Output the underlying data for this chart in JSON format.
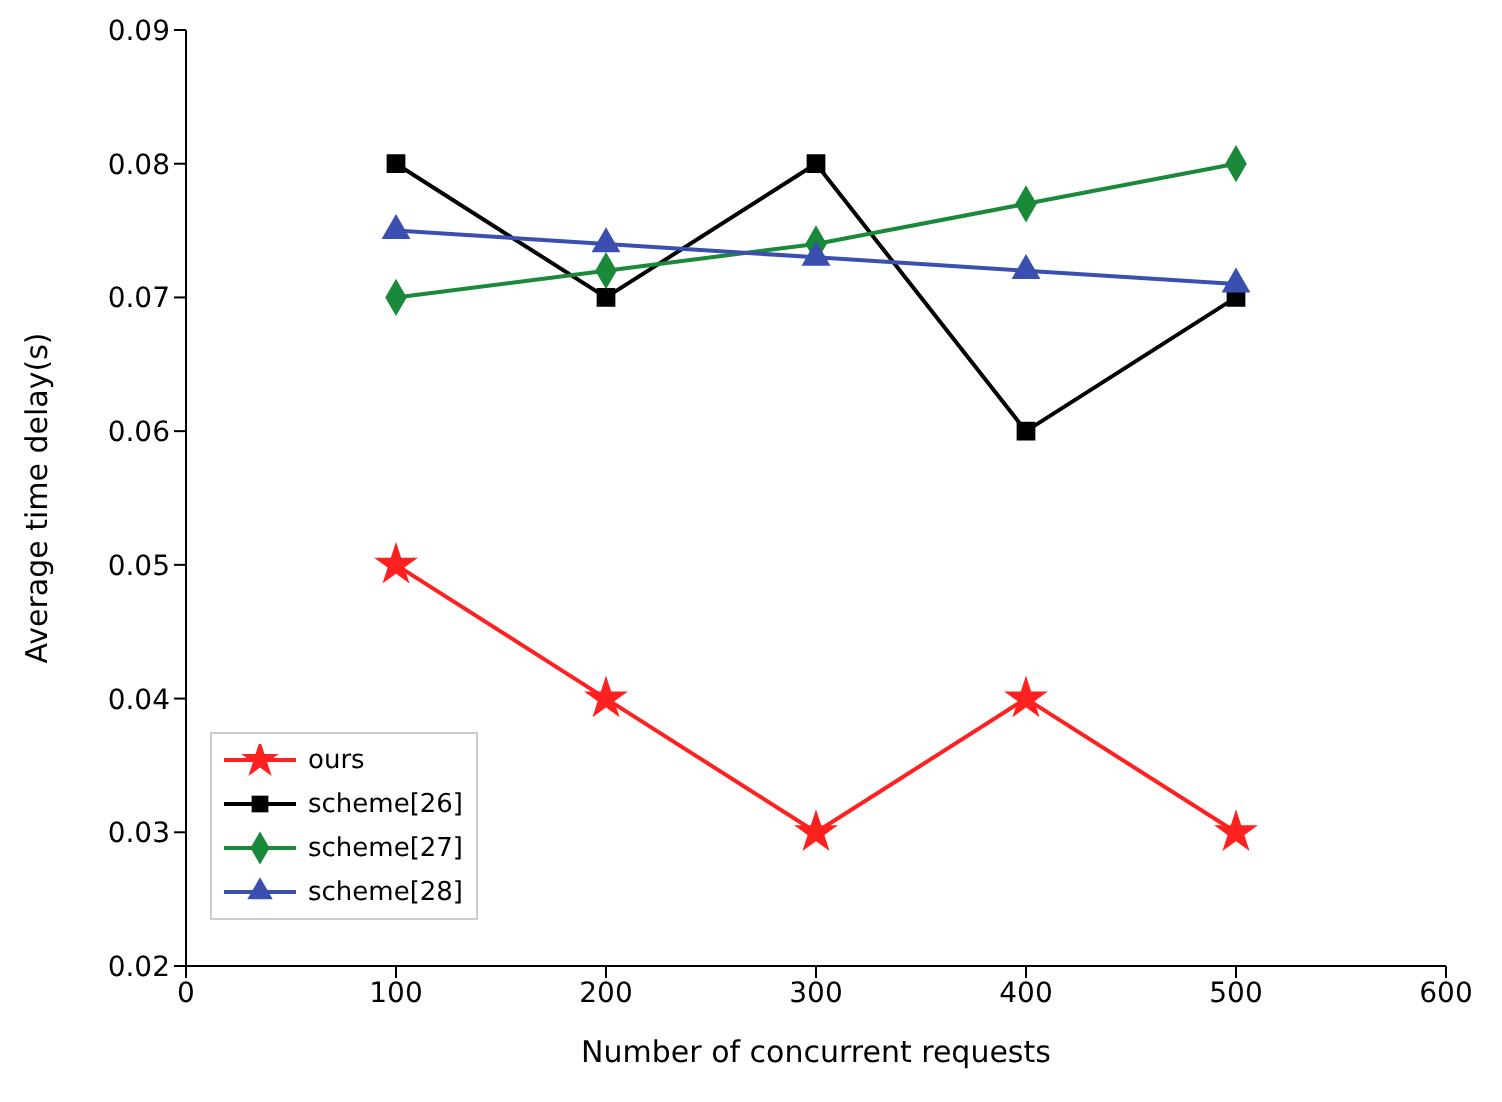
{
  "chart_data": {
    "type": "line",
    "xlabel": "Number of concurrent requests",
    "ylabel": "Average time delay(s)",
    "x": [
      100,
      200,
      300,
      400,
      500
    ],
    "series": [
      {
        "name": "ours",
        "color": "#ff2020",
        "marker": "star",
        "values": [
          0.05,
          0.04,
          0.03,
          0.04,
          0.03
        ]
      },
      {
        "name": "scheme[26]",
        "color": "#000000",
        "marker": "square",
        "values": [
          0.08,
          0.07,
          0.08,
          0.06,
          0.07
        ]
      },
      {
        "name": "scheme[27]",
        "color": "#1a8a3a",
        "marker": "diamond",
        "values": [
          0.07,
          0.072,
          0.074,
          0.077,
          0.08
        ]
      },
      {
        "name": "scheme[28]",
        "color": "#3a4fb0",
        "marker": "triangle",
        "values": [
          0.075,
          0.074,
          0.073,
          0.072,
          0.071
        ]
      }
    ],
    "xlim": [
      0,
      600
    ],
    "xticks": [
      0,
      100,
      200,
      300,
      400,
      500,
      600
    ],
    "ylim": [
      0.02,
      0.09
    ],
    "yticks": [
      0.02,
      0.03,
      0.04,
      0.05,
      0.06,
      0.07,
      0.08,
      0.09
    ],
    "grid": false,
    "legend": "bottom left",
    "line_style": "solid"
  }
}
